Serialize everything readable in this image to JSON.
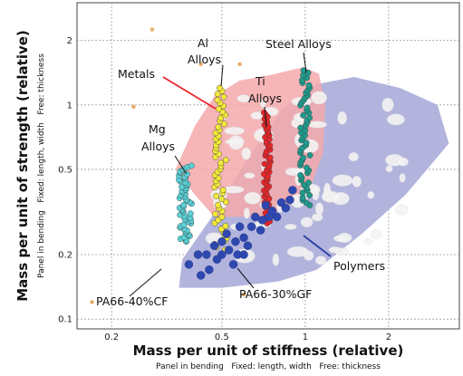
{
  "chart_data": {
    "type": "scatter",
    "xscale": "log",
    "yscale": "log",
    "xlim": [
      0.15,
      3.6
    ],
    "ylim": [
      0.09,
      3.0
    ],
    "grid": true,
    "xticks": [
      {
        "v": 0.2,
        "label": "0.2"
      },
      {
        "v": 0.5,
        "label": "0.5"
      },
      {
        "v": 1,
        "label": "1"
      },
      {
        "v": 2,
        "label": "2"
      }
    ],
    "yticks": [
      {
        "v": 0.1,
        "label": "0.1"
      },
      {
        "v": 0.2,
        "label": "0.2"
      },
      {
        "v": 0.5,
        "label": "0.5"
      },
      {
        "v": 1,
        "label": "1"
      },
      {
        "v": 2,
        "label": "2"
      }
    ],
    "xlabel": "Mass per unit of stiffness (relative)",
    "xsublabel": "Panel in bending   Fixed: length, width   Free: thickness",
    "ylabel": "Mass per unit of strength (relative)",
    "ysublabel": "Panel in bending   Fixed: length, width   Free: thickness",
    "colors": {
      "polymers_envelope": "#aeb0dc",
      "metals_envelope": "#f4a9ab",
      "mg": "#5ad0d6",
      "al": "#f2e83a",
      "ti": "#e8262a",
      "steel": "#1f9a8c",
      "polymer_points": "#2f48b0",
      "light_points": "#f4f4f4",
      "reference": "#e9ab66",
      "metals_label": "#e8262a",
      "polymers_label": "#2a3ea0"
    },
    "annotations": {
      "metals": "Metals",
      "polymers": "Polymers",
      "al": "Al\nAlloys",
      "ti": "Ti\nAlloys",
      "mg": "Mg\nAlloys",
      "steel": "Steel Alloys",
      "pa66_40": "PA66-40%CF",
      "pa66_30": "PA66-30%GF"
    },
    "envelopes": [
      {
        "name": "Polymers",
        "points": [
          [
            0.35,
            0.14
          ],
          [
            0.5,
            0.14
          ],
          [
            0.8,
            0.15
          ],
          [
            1.1,
            0.17
          ],
          [
            1.6,
            0.25
          ],
          [
            2.3,
            0.38
          ],
          [
            3.3,
            0.66
          ],
          [
            3.0,
            1.0
          ],
          [
            2.2,
            1.2
          ],
          [
            1.5,
            1.35
          ],
          [
            1.1,
            1.25
          ],
          [
            0.82,
            0.95
          ],
          [
            0.62,
            0.56
          ],
          [
            0.46,
            0.3
          ],
          [
            0.36,
            0.19
          ]
        ]
      },
      {
        "name": "Metals",
        "points": [
          [
            0.34,
            0.5
          ],
          [
            0.4,
            0.8
          ],
          [
            0.47,
            1.1
          ],
          [
            0.58,
            1.3
          ],
          [
            0.75,
            1.38
          ],
          [
            0.98,
            1.5
          ],
          [
            1.12,
            1.4
          ],
          [
            1.18,
            1.0
          ],
          [
            1.16,
            0.6
          ],
          [
            1.05,
            0.42
          ],
          [
            0.88,
            0.34
          ],
          [
            0.72,
            0.3
          ],
          [
            0.58,
            0.3
          ],
          [
            0.47,
            0.3
          ],
          [
            0.4,
            0.38
          ]
        ]
      }
    ],
    "series": [
      {
        "name": "Mg Alloys",
        "type": "column",
        "x": [
          0.35,
          0.39
        ],
        "y": [
          0.23,
          0.52
        ]
      },
      {
        "name": "Al Alloys",
        "type": "column",
        "x": [
          0.47,
          0.52
        ],
        "y": [
          0.21,
          1.2
        ]
      },
      {
        "name": "Ti Alloys",
        "type": "column",
        "x": [
          0.71,
          0.75
        ],
        "y": [
          0.28,
          0.92
        ]
      },
      {
        "name": "Steel Alloys",
        "type": "column",
        "x": [
          0.96,
          1.04
        ],
        "y": [
          0.34,
          1.45
        ]
      },
      {
        "name": "Polymers",
        "type": "cluster",
        "points": [
          [
            0.38,
            0.18
          ],
          [
            0.42,
            0.16
          ],
          [
            0.44,
            0.2
          ],
          [
            0.47,
            0.22
          ],
          [
            0.5,
            0.2
          ],
          [
            0.53,
            0.21
          ],
          [
            0.56,
            0.23
          ],
          [
            0.6,
            0.24
          ],
          [
            0.64,
            0.27
          ],
          [
            0.7,
            0.29
          ],
          [
            0.76,
            0.32
          ],
          [
            0.82,
            0.35
          ],
          [
            0.88,
            0.36
          ],
          [
            0.55,
            0.18
          ],
          [
            0.6,
            0.2
          ],
          [
            0.48,
            0.19
          ],
          [
            0.66,
            0.3
          ],
          [
            0.72,
            0.34
          ],
          [
            0.45,
            0.17
          ],
          [
            0.52,
            0.25
          ],
          [
            0.58,
            0.27
          ],
          [
            0.62,
            0.22
          ],
          [
            0.79,
            0.3
          ],
          [
            0.85,
            0.33
          ],
          [
            0.69,
            0.26
          ],
          [
            0.41,
            0.2
          ],
          [
            0.5,
            0.23
          ],
          [
            0.57,
            0.2
          ],
          [
            0.74,
            0.3
          ],
          [
            0.9,
            0.4
          ]
        ]
      }
    ],
    "reference_points": [
      [
        0.17,
        0.12
      ],
      [
        0.24,
        0.98
      ],
      [
        0.28,
        2.25
      ],
      [
        0.42,
        1.55
      ],
      [
        0.58,
        1.55
      ],
      [
        0.6,
        0.13
      ]
    ]
  }
}
